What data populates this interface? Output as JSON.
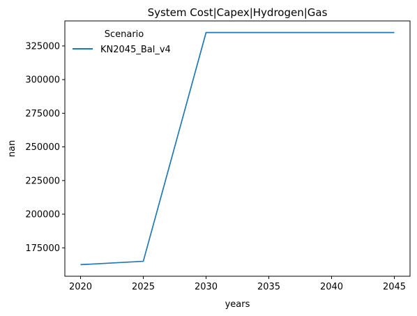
{
  "chart_data": {
    "type": "line",
    "title": "System Cost|Capex|Hydrogen|Gas",
    "xlabel": "years",
    "ylabel": "nan",
    "x": [
      2020,
      2025,
      2030,
      2035,
      2040,
      2045
    ],
    "series": [
      {
        "name": "KN2045_Bal_v4",
        "color": "#1f77b4",
        "values": [
          162500,
          165000,
          335000,
          335000,
          335000,
          335000
        ]
      }
    ],
    "xticks": [
      "2020",
      "2025",
      "2030",
      "2035",
      "2040",
      "2045"
    ],
    "yticks": [
      "175000",
      "200000",
      "225000",
      "250000",
      "275000",
      "300000",
      "325000"
    ],
    "xlim": [
      2018.75,
      2046.25
    ],
    "ylim": [
      153900,
      343600
    ],
    "grid": false,
    "legend": {
      "title": "Scenario",
      "placement": "top-left"
    }
  }
}
